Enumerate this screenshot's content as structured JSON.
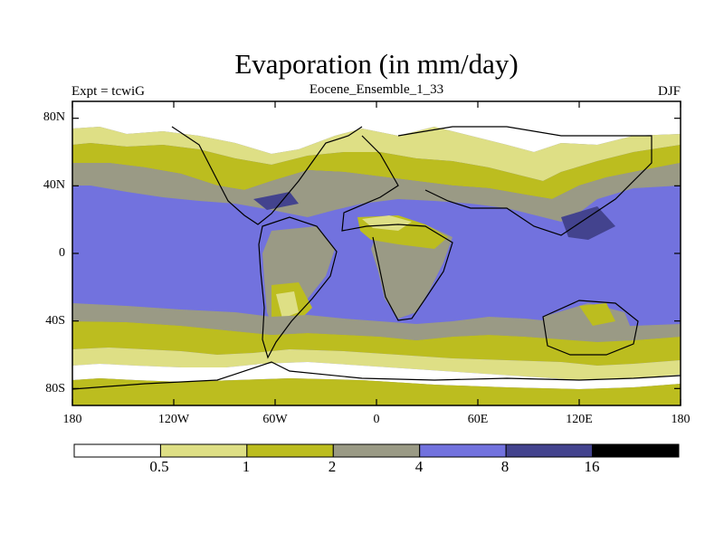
{
  "figure": {
    "title": "Evaporation (in mm/day)",
    "left_label": "Expt = tcwiG",
    "center_label": "Eocene_Ensemble_1_33",
    "right_label": "DJF"
  },
  "axes": {
    "y_ticks": [
      {
        "label": "80N",
        "lat": 80
      },
      {
        "label": "40N",
        "lat": 40
      },
      {
        "label": "0",
        "lat": 0
      },
      {
        "label": "40S",
        "lat": -40
      },
      {
        "label": "80S",
        "lat": -80
      }
    ],
    "x_ticks": [
      {
        "label": "180",
        "lon": -180
      },
      {
        "label": "120W",
        "lon": -120
      },
      {
        "label": "60W",
        "lon": -60
      },
      {
        "label": "0",
        "lon": 0
      },
      {
        "label": "60E",
        "lon": 60
      },
      {
        "label": "120E",
        "lon": 120
      },
      {
        "label": "180",
        "lon": 180
      }
    ]
  },
  "legend": {
    "colors": [
      "#ffffff",
      "#dedf85",
      "#bcbd1f",
      "#9a9a85",
      "#7272de",
      "#43438e",
      "#000000"
    ],
    "levels": [
      "0.5",
      "1",
      "2",
      "4",
      "8",
      "16"
    ]
  }
}
